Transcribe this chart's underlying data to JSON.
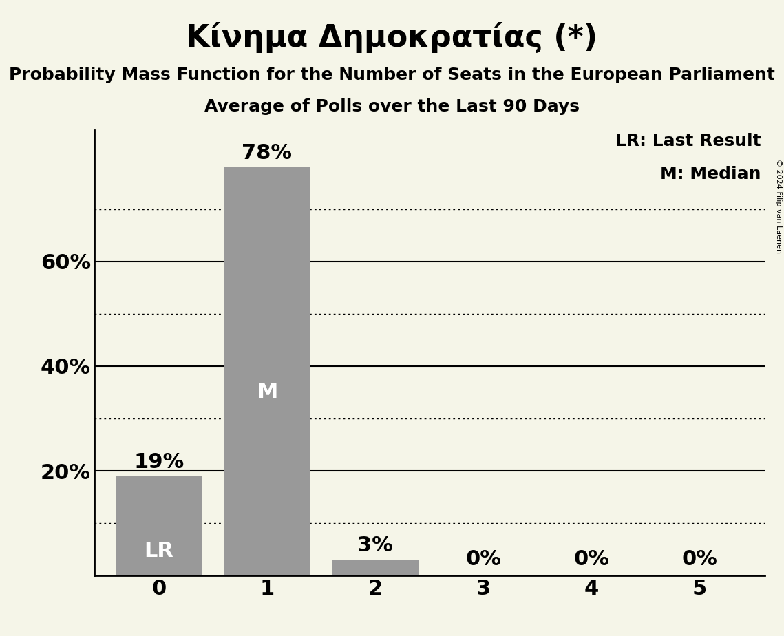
{
  "title": "Κίνημα Δημοκρατίας (*)",
  "subtitle1": "Probability Mass Function for the Number of Seats in the European Parliament",
  "subtitle2": "Average of Polls over the Last 90 Days",
  "categories": [
    0,
    1,
    2,
    3,
    4,
    5
  ],
  "values": [
    0.19,
    0.78,
    0.03,
    0.0,
    0.0,
    0.0
  ],
  "bar_color": "#999999",
  "background_color": "#f5f5e8",
  "bar_labels": [
    "19%",
    "78%",
    "3%",
    "0%",
    "0%",
    "0%"
  ],
  "bar_inner_labels": [
    "LR",
    "M",
    "",
    "",
    "",
    ""
  ],
  "ylim": [
    0,
    0.85
  ],
  "yticks": [
    0.0,
    0.2,
    0.4,
    0.6
  ],
  "ytick_labels": [
    "",
    "20%",
    "40%",
    "60%"
  ],
  "dotted_lines": [
    0.1,
    0.3,
    0.5,
    0.7
  ],
  "solid_lines": [
    0.2,
    0.4,
    0.6
  ],
  "legend_text": [
    "LR: Last Result",
    "M: Median"
  ],
  "copyright": "© 2024 Filip van Laenen",
  "title_fontsize": 32,
  "subtitle_fontsize": 18,
  "axis_fontsize": 22,
  "bar_label_fontsize": 22,
  "inner_label_fontsize": 22,
  "legend_fontsize": 18
}
